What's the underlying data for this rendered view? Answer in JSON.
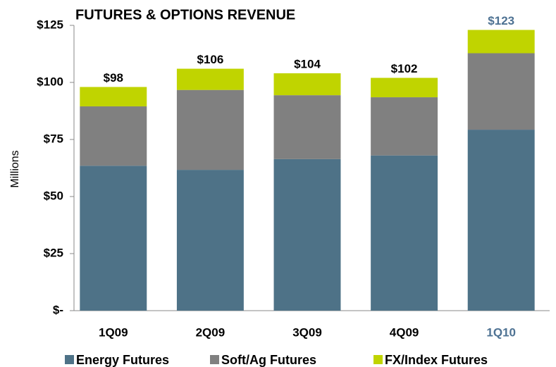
{
  "chart_data": {
    "type": "stacked_bar",
    "title": "FUTURES & OPTIONS REVENUE",
    "y_label": "Millions",
    "categories": [
      "1Q09",
      "2Q09",
      "3Q09",
      "4Q09",
      "1Q10"
    ],
    "series": [
      {
        "name": "Energy Futures",
        "color": "#4e7287",
        "values": [
          63.5,
          61.7,
          66.4,
          68,
          79.3
        ]
      },
      {
        "name": "Soft/Ag Futures",
        "color": "#808080",
        "values": [
          26,
          35,
          28,
          25.5,
          33.5
        ]
      },
      {
        "name": "FX/Index Futures",
        "color": "#c0d400",
        "values": [
          8.5,
          9.3,
          9.6,
          8.5,
          10.2
        ]
      }
    ],
    "totals": [
      98,
      106,
      104,
      102,
      123
    ],
    "total_labels": [
      "$98",
      "$106",
      "$104",
      "$102",
      "$123"
    ],
    "highlight_index": 4,
    "highlight_color": "#4e7293",
    "ylim": [
      0,
      125
    ],
    "yticks": [
      {
        "value": 0,
        "label": "$-"
      },
      {
        "value": 25,
        "label": "$25"
      },
      {
        "value": 50,
        "label": "$50"
      },
      {
        "value": 75,
        "label": "$75"
      },
      {
        "value": 100,
        "label": "$100"
      },
      {
        "value": 125,
        "label": "$125"
      }
    ],
    "legend": "bottom"
  }
}
